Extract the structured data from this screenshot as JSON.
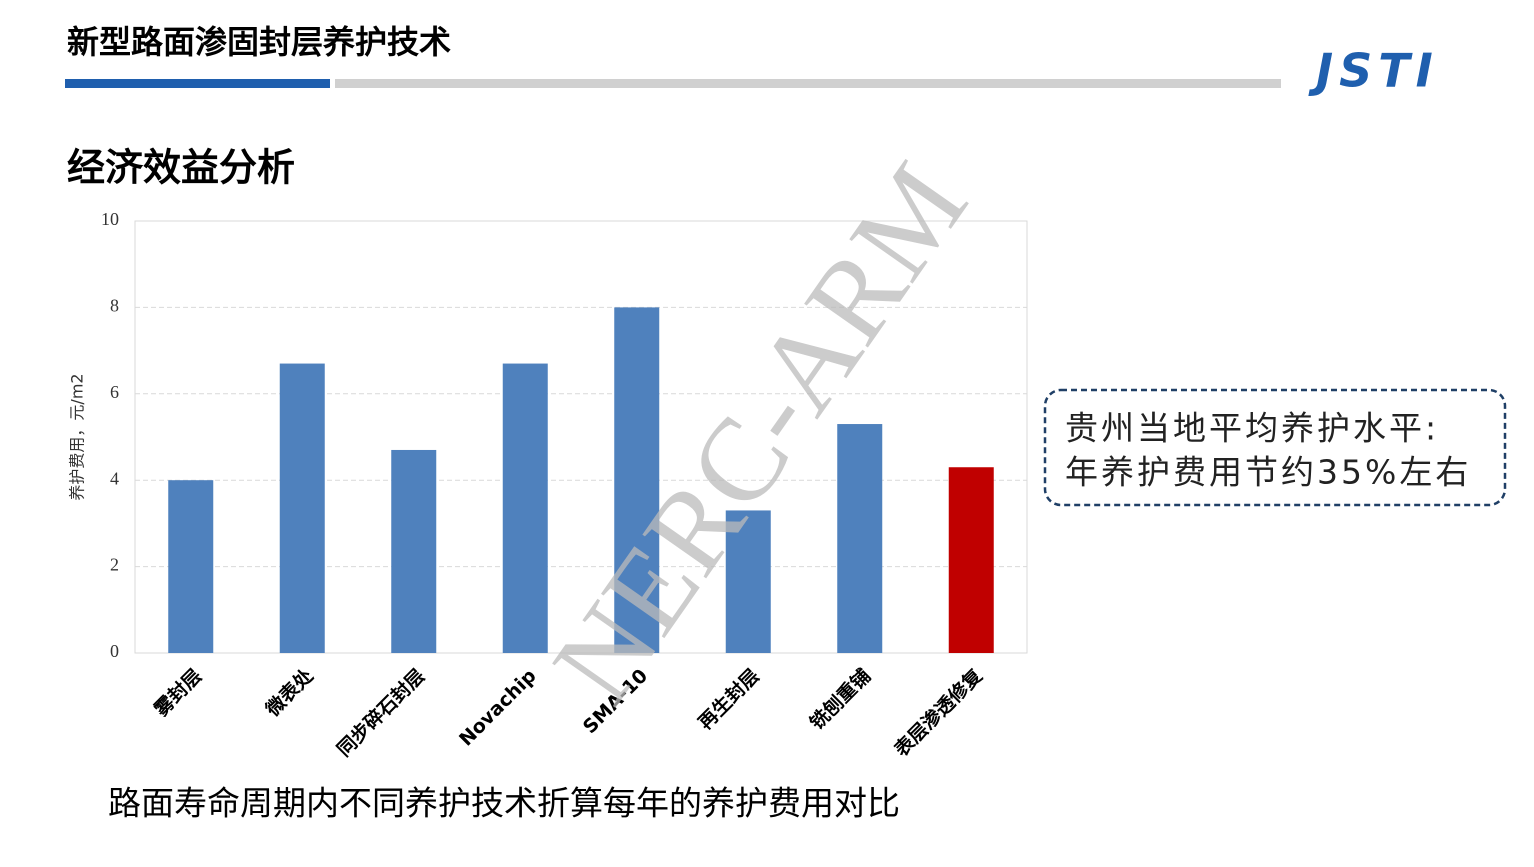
{
  "header": {
    "title": "新型路面渗固封层养护技术",
    "logo": "JSTI"
  },
  "subtitle": "经济效益分析",
  "chart_data": {
    "type": "bar",
    "y_label": "养护费用，元/m2",
    "categories": [
      "雾封层",
      "微表处",
      "同步碎石封层",
      "Novachip",
      "SMA-10",
      "再生封层",
      "铣刨重铺",
      "表层渗透修复"
    ],
    "values": [
      4,
      6.7,
      4.7,
      6.7,
      8,
      3.3,
      5.3,
      4.3
    ],
    "colors": [
      "#4f81bd",
      "#4f81bd",
      "#4f81bd",
      "#4f81bd",
      "#4f81bd",
      "#4f81bd",
      "#4f81bd",
      "#c00000"
    ],
    "ylim": [
      0,
      10
    ],
    "yticks": [
      0,
      2,
      4,
      6,
      8,
      10
    ],
    "grid": true
  },
  "callout": [
    "贵州当地平均养护水平:",
    "年养护费用节约35%左右"
  ],
  "caption": "路面寿命周期内不同养护技术折算每年的养护费用对比",
  "watermark": "NERC-ARM"
}
